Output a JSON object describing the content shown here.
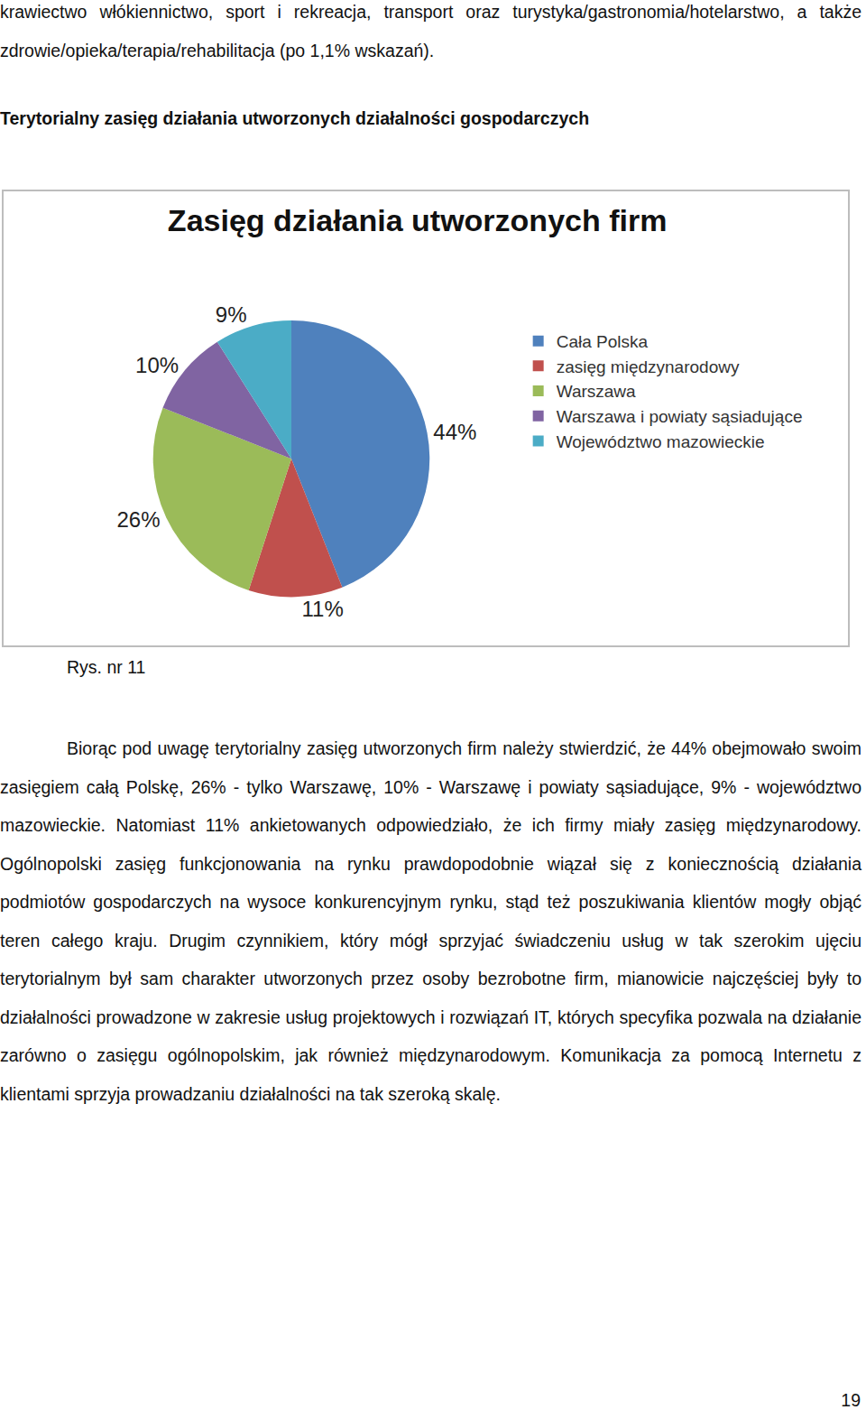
{
  "top_text": "krawiectwo włókiennictwo, sport i rekreacja, transport oraz turystyka/gastronomia/hotelarstwo, a także zdrowie/opieka/terapia/rehabilitacja (po 1,1% wskazań).",
  "heading": "Terytorialny zasięg działania utworzonych działalności gospodarczych",
  "chart_data": {
    "type": "pie",
    "title": "Zasięg działania utworzonych firm",
    "categories": [
      "Cała Polska",
      "zasięg międzynarodowy",
      "Warszawa",
      "Warszawa i powiaty sąsiadujące",
      "Województwo mazowieckie"
    ],
    "values": [
      44,
      11,
      26,
      10,
      9
    ],
    "value_labels": [
      "44%",
      "11%",
      "26%",
      "10%",
      "9%"
    ],
    "colors": [
      "#4f81bd",
      "#c0504d",
      "#9bbb59",
      "#8064a2",
      "#4bacc6"
    ],
    "data_labels": true,
    "legend": "right"
  },
  "caption": "Rys. nr 11",
  "body": "Biorąc pod uwagę terytorialny zasięg utworzonych firm należy stwierdzić, że 44% obejmowało swoim zasięgiem całą Polskę, 26% - tylko Warszawę, 10% - Warszawę i powiaty sąsiadujące, 9% - województwo mazowieckie. Natomiast 11% ankietowanych odpowiedziało, że ich firmy miały zasięg międzynarodowy. Ogólnopolski zasięg funkcjonowania na rynku prawdopodobnie wiązał się z koniecznością działania podmiotów gospodarczych na wysoce konkurencyjnym rynku, stąd też poszukiwania klientów mogły objąć teren całego kraju. Drugim czynnikiem, który mógł sprzyjać świadczeniu usług w tak szerokim ujęciu terytorialnym był sam charakter utworzonych przez osoby bezrobotne firm, mianowicie najczęściej były to działalności prowadzone w zakresie usług projektowych i rozwiązań IT, których specyfika pozwala na działanie zarówno o zasięgu ogólnopolskim, jak również międzynarodowym. Komunikacja za pomocą Internetu z klientami sprzyja prowadzaniu działalności na tak szeroką skalę.",
  "page_number": "19"
}
